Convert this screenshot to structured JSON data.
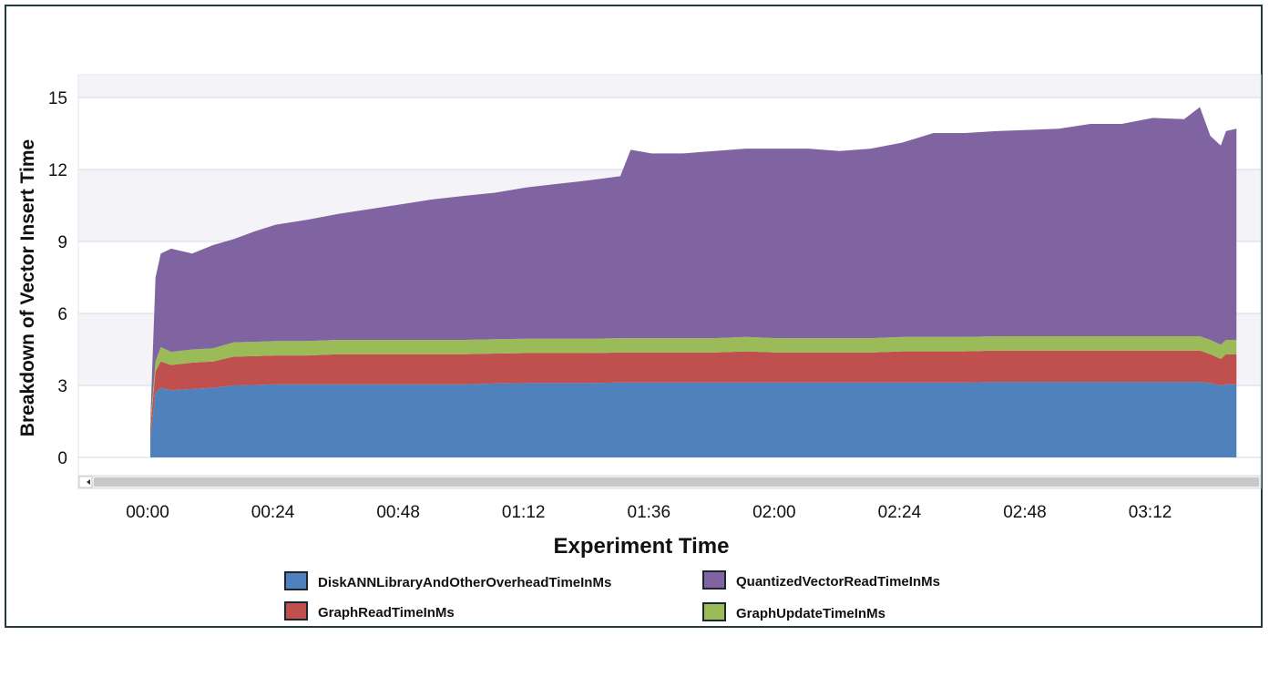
{
  "chart_data": {
    "type": "area",
    "stacked": true,
    "title": "",
    "xlabel": "Experiment Time",
    "ylabel": "Breakdown of Vector Insert Time",
    "ylim": [
      0,
      16
    ],
    "xlim_minutes": [
      0,
      209
    ],
    "y_ticks": [
      0,
      3,
      6,
      9,
      12,
      15
    ],
    "x_ticks": [
      "00:00",
      "00:24",
      "00:48",
      "01:12",
      "01:36",
      "02:00",
      "02:24",
      "02:48",
      "03:12"
    ],
    "grid": true,
    "legend_position": "bottom",
    "x_minutes": [
      0,
      1,
      2,
      4,
      8,
      12,
      16,
      20,
      24,
      30,
      36,
      42,
      48,
      54,
      60,
      66,
      72,
      78,
      84,
      90,
      92,
      96,
      102,
      108,
      114,
      120,
      126,
      132,
      138,
      144,
      150,
      156,
      162,
      168,
      174,
      180,
      186,
      192,
      198,
      201,
      203,
      205,
      206,
      208
    ],
    "series": [
      {
        "name": "DiskANNLibraryAndOtherOverheadTimeInMs",
        "color": "#4f81bd",
        "values": [
          0.8,
          2.7,
          2.9,
          2.8,
          2.85,
          2.9,
          3.0,
          3.02,
          3.05,
          3.05,
          3.05,
          3.05,
          3.05,
          3.05,
          3.05,
          3.08,
          3.1,
          3.1,
          3.1,
          3.12,
          3.12,
          3.12,
          3.12,
          3.12,
          3.12,
          3.12,
          3.12,
          3.12,
          3.12,
          3.12,
          3.12,
          3.12,
          3.15,
          3.15,
          3.15,
          3.15,
          3.15,
          3.15,
          3.15,
          3.15,
          3.1,
          3.0,
          3.05,
          3.05
        ]
      },
      {
        "name": "GraphReadTimeInMs",
        "color": "#c0504d",
        "values": [
          0.4,
          0.9,
          1.1,
          1.05,
          1.1,
          1.1,
          1.2,
          1.2,
          1.2,
          1.2,
          1.25,
          1.25,
          1.25,
          1.25,
          1.25,
          1.25,
          1.25,
          1.25,
          1.25,
          1.25,
          1.25,
          1.25,
          1.25,
          1.25,
          1.3,
          1.25,
          1.25,
          1.25,
          1.25,
          1.3,
          1.3,
          1.3,
          1.3,
          1.3,
          1.3,
          1.3,
          1.3,
          1.3,
          1.3,
          1.3,
          1.2,
          1.1,
          1.25,
          1.25
        ]
      },
      {
        "name": "GraphUpdateTimeInMs",
        "color": "#9bbb59",
        "values": [
          0.2,
          0.4,
          0.6,
          0.55,
          0.55,
          0.55,
          0.6,
          0.6,
          0.6,
          0.6,
          0.6,
          0.6,
          0.6,
          0.6,
          0.6,
          0.6,
          0.6,
          0.6,
          0.6,
          0.6,
          0.6,
          0.6,
          0.6,
          0.6,
          0.6,
          0.6,
          0.6,
          0.6,
          0.6,
          0.6,
          0.6,
          0.6,
          0.6,
          0.6,
          0.6,
          0.6,
          0.6,
          0.6,
          0.6,
          0.6,
          0.6,
          0.6,
          0.6,
          0.6
        ]
      },
      {
        "name": "QuantizedVectorReadTimeInMs",
        "color": "#8064a2",
        "values": [
          0.1,
          3.5,
          3.9,
          4.3,
          4.0,
          4.3,
          4.3,
          4.6,
          4.85,
          5.05,
          5.25,
          5.45,
          5.65,
          5.85,
          6.0,
          6.1,
          6.3,
          6.45,
          6.6,
          6.75,
          7.85,
          7.7,
          7.7,
          7.8,
          7.85,
          7.9,
          7.9,
          7.8,
          7.9,
          8.1,
          8.5,
          8.5,
          8.55,
          8.6,
          8.65,
          8.85,
          8.85,
          9.1,
          9.05,
          9.55,
          8.5,
          8.3,
          8.7,
          8.8
        ]
      }
    ]
  }
}
